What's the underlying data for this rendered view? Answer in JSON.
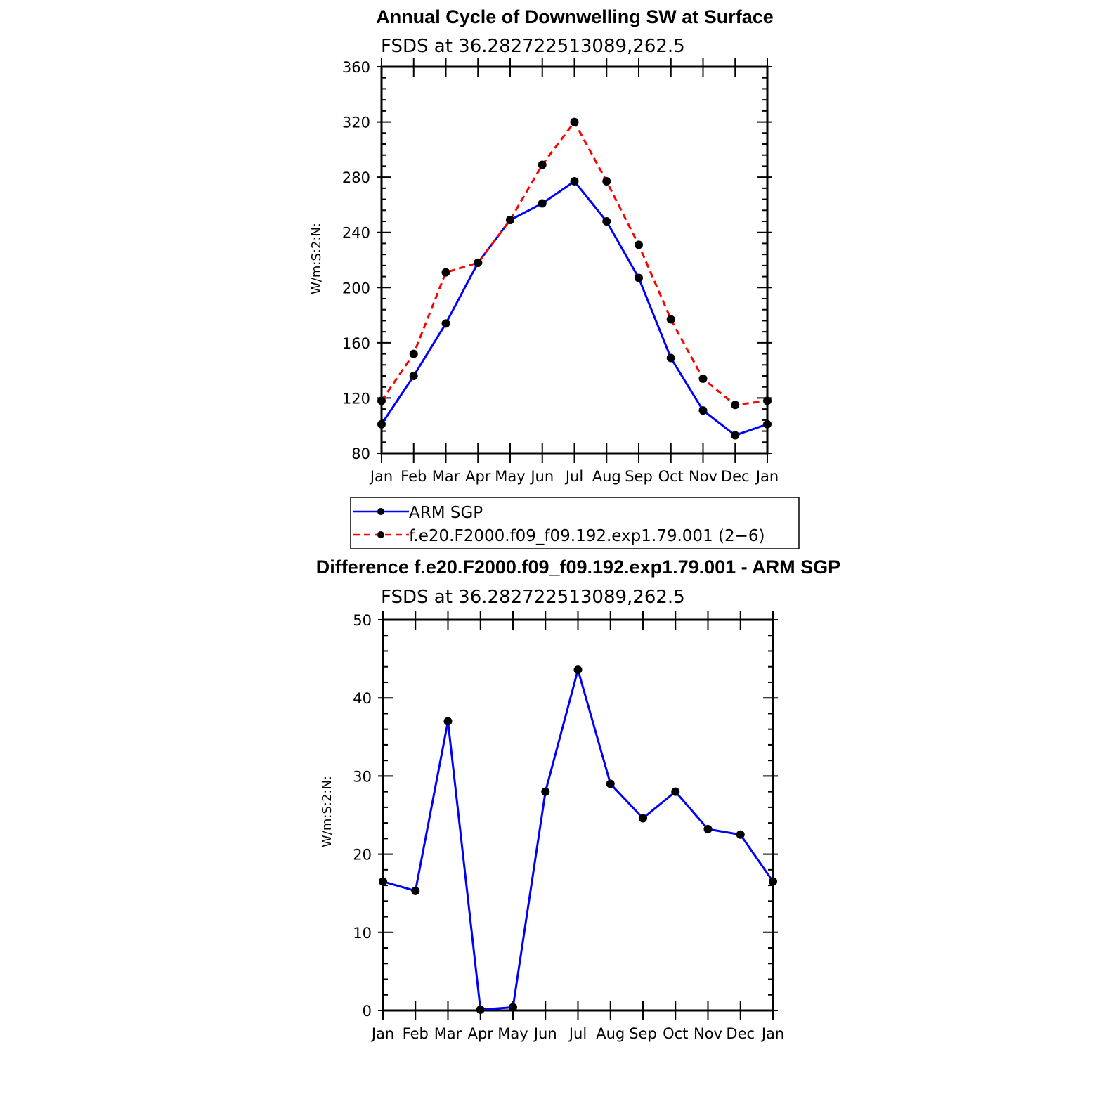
{
  "chart_data": [
    {
      "type": "line",
      "title": "Annual Cycle of Downwelling SW at Surface",
      "subtitle": "FSDS at 36.282722513089,262.5",
      "xlabel": "",
      "ylabel": "W/m:S:2:N:",
      "categories": [
        "Jan",
        "Feb",
        "Mar",
        "Apr",
        "May",
        "Jun",
        "Jul",
        "Aug",
        "Sep",
        "Oct",
        "Nov",
        "Dec",
        "Jan"
      ],
      "ylim": [
        80,
        360
      ],
      "yticks": [
        80,
        120,
        160,
        200,
        240,
        280,
        320,
        360
      ],
      "grid": false,
      "legend_position": "below",
      "series": [
        {
          "name": "ARM SGP",
          "color": "#0000ff",
          "dash": "solid",
          "values": [
            101,
            136,
            174,
            218,
            249,
            261,
            277,
            248,
            207,
            149,
            111,
            93,
            101
          ]
        },
        {
          "name": "f.e20.F2000.f09_f09.192.exp1.79.001 (2−6)",
          "color": "#ff0000",
          "dash": "dashed",
          "values": [
            118,
            152,
            211,
            218,
            249,
            289,
            320,
            277,
            231,
            177,
            134,
            115,
            118
          ]
        }
      ]
    },
    {
      "type": "line",
      "title": "Difference f.e20.F2000.f09_f09.192.exp1.79.001 - ARM SGP",
      "subtitle": "FSDS at 36.282722513089,262.5",
      "xlabel": "",
      "ylabel": "W/m:S:2:N:",
      "categories": [
        "Jan",
        "Feb",
        "Mar",
        "Apr",
        "May",
        "Jun",
        "Jul",
        "Aug",
        "Sep",
        "Oct",
        "Nov",
        "Dec",
        "Jan"
      ],
      "ylim": [
        0,
        50
      ],
      "yticks": [
        0,
        10,
        20,
        30,
        40,
        50
      ],
      "grid": false,
      "series": [
        {
          "color": "#0000ff",
          "dash": "solid",
          "values": [
            16.5,
            15.3,
            37.0,
            0.1,
            0.4,
            28.0,
            43.6,
            29.0,
            24.6,
            28.0,
            23.2,
            22.5,
            16.5
          ]
        }
      ]
    }
  ]
}
